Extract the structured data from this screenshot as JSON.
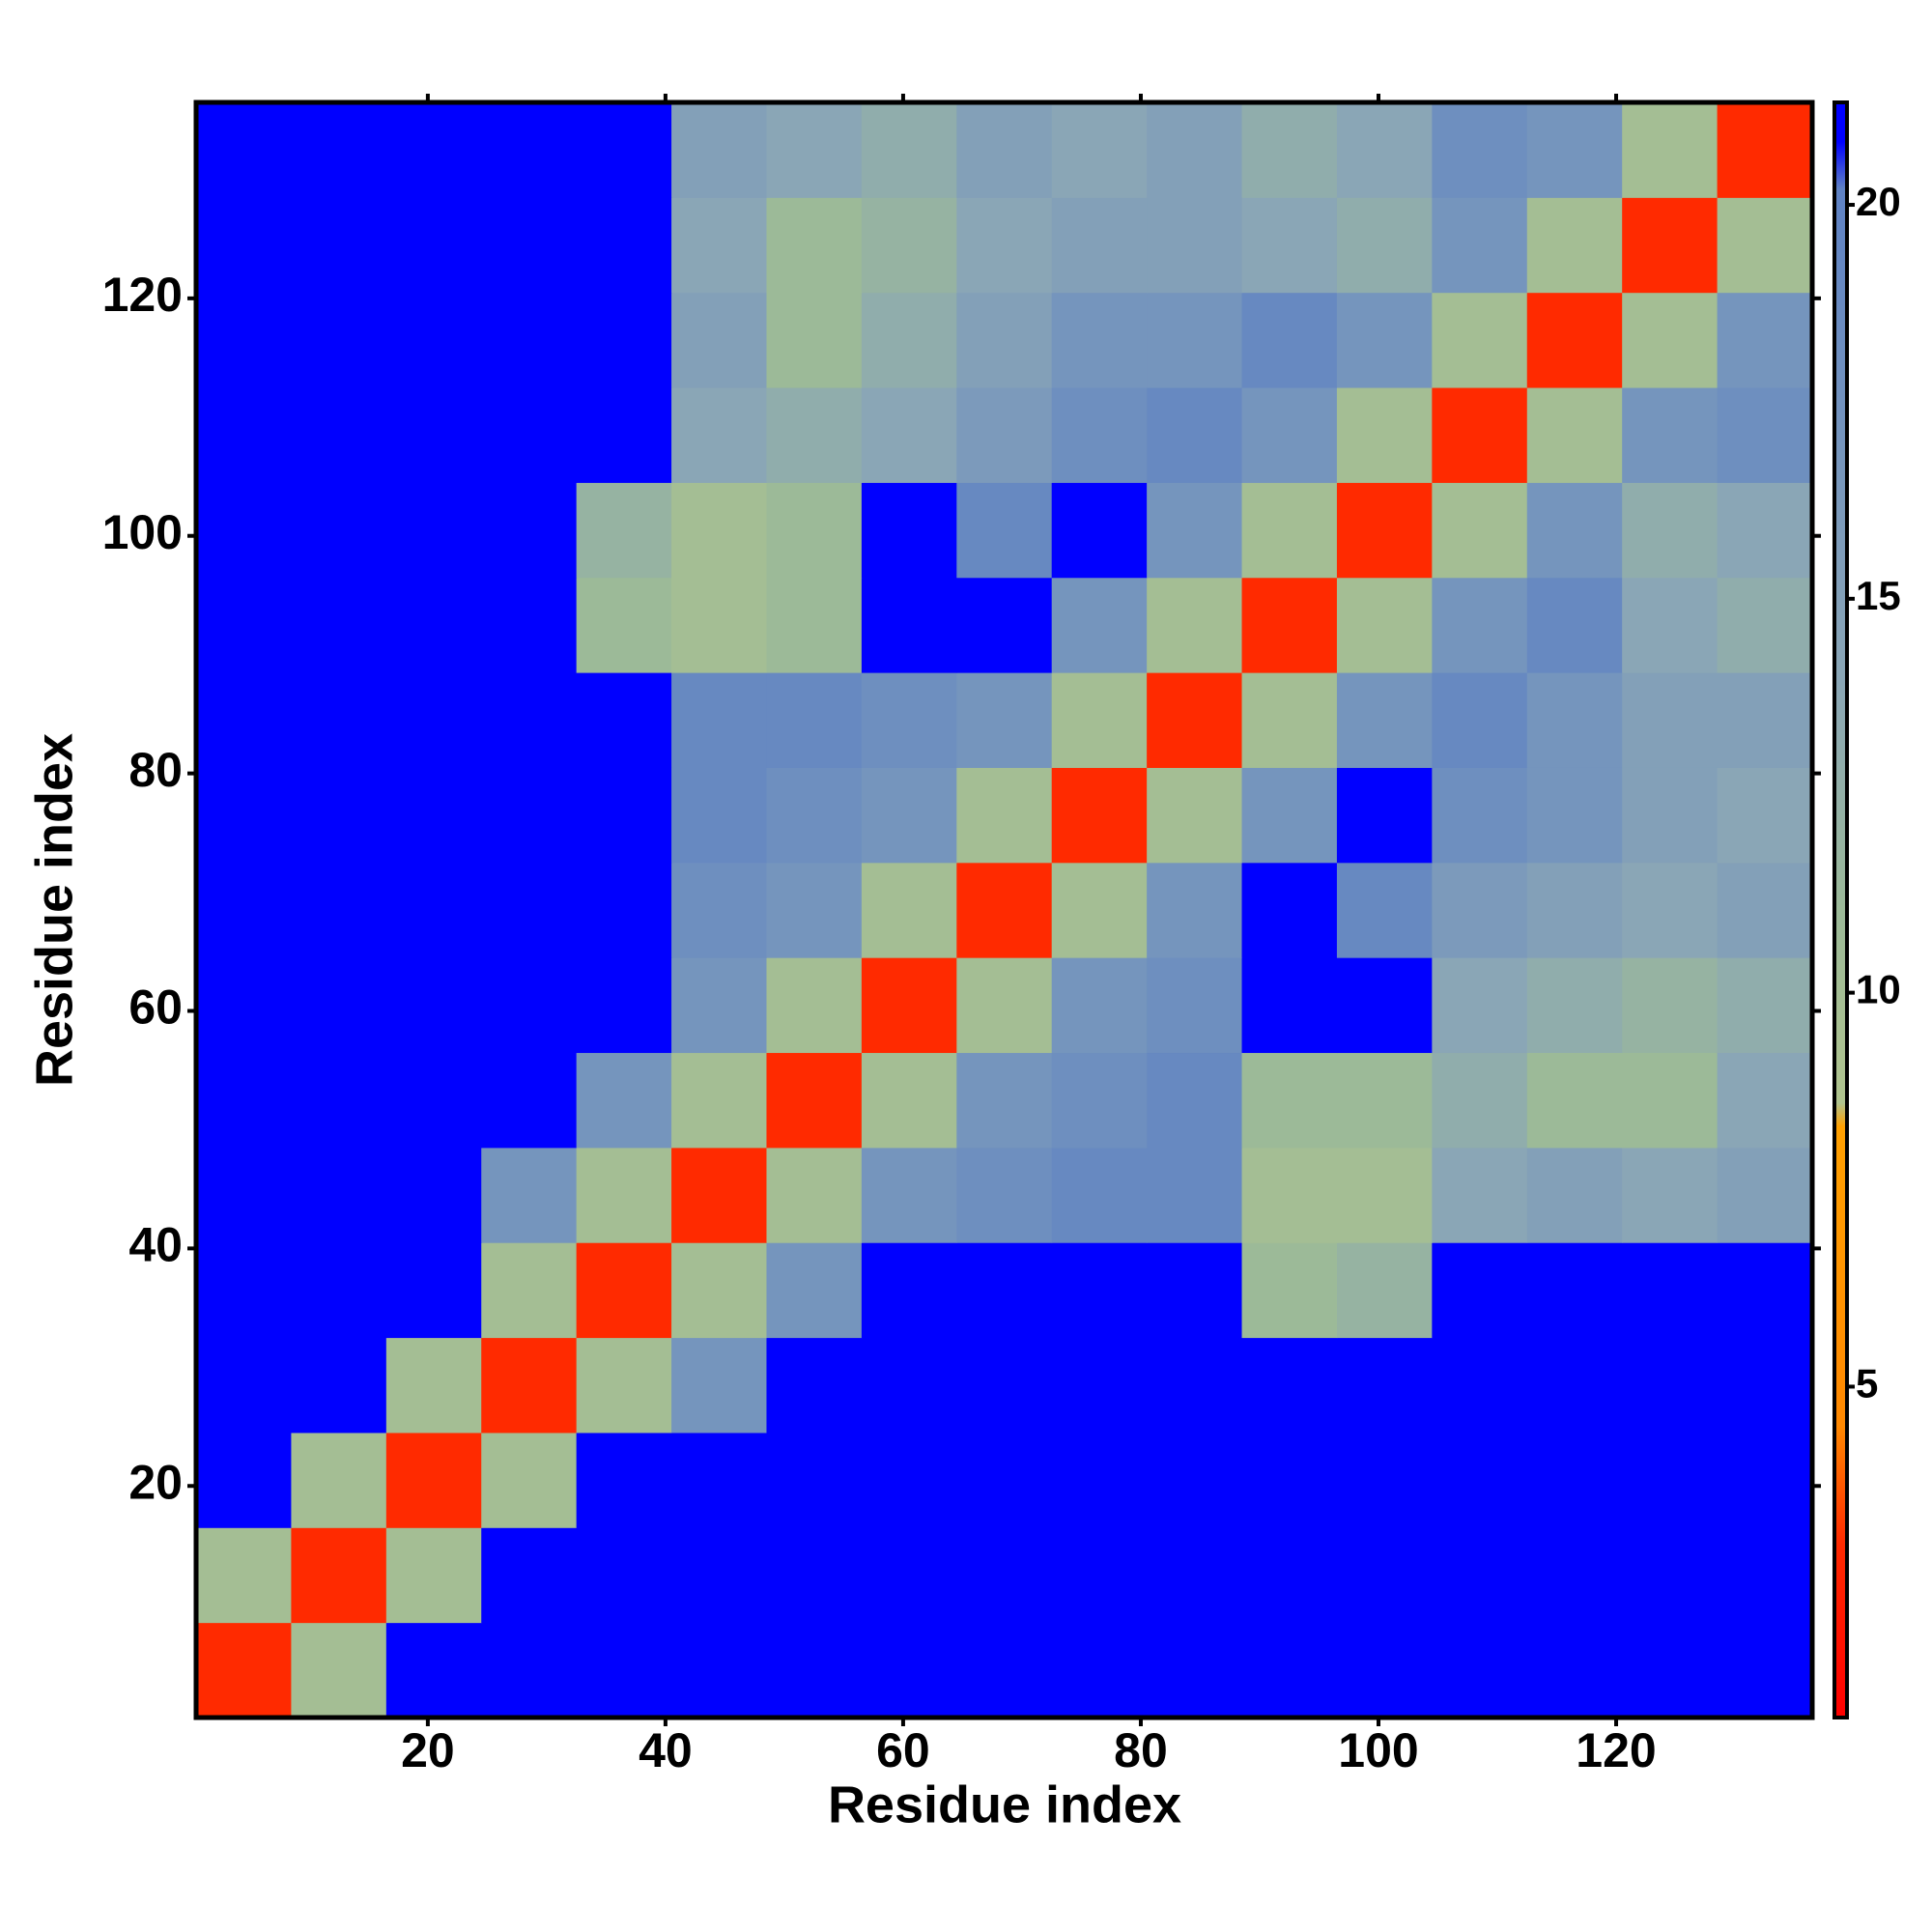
{
  "chart_data": {
    "type": "heatmap",
    "x_label": "Residue index",
    "y_label": "Residue index",
    "xbins": [
      0.5,
      8.5,
      16.5,
      24.5,
      32.5,
      40.5,
      48.5,
      56.5,
      64.5,
      72.5,
      80.5,
      88.5,
      96.5,
      104.5,
      112.5,
      120.5,
      128.5,
      136.5
    ],
    "ybins": [
      0.5,
      8.5,
      16.5,
      24.5,
      32.5,
      40.5,
      48.5,
      56.5,
      64.5,
      72.5,
      80.5,
      88.5,
      96.5,
      104.5,
      112.5,
      120.5,
      128.5,
      136.5
    ],
    "xlim": [
      0.5,
      136.5
    ],
    "ylim": [
      0.5,
      136.5
    ],
    "xticks": [
      20,
      40,
      60,
      80,
      100,
      120
    ],
    "yticks": [
      20,
      40,
      60,
      80,
      100,
      120
    ],
    "z": [
      [
        3,
        10,
        21,
        21,
        21,
        21,
        21,
        21,
        21,
        21,
        21,
        21,
        21,
        21,
        21,
        21,
        21
      ],
      [
        10,
        3,
        10,
        21,
        21,
        21,
        21,
        21,
        21,
        21,
        21,
        21,
        21,
        21,
        21,
        21,
        21
      ],
      [
        21,
        10,
        3,
        10,
        21,
        21,
        21,
        21,
        21,
        21,
        21,
        21,
        21,
        21,
        21,
        21,
        21
      ],
      [
        21,
        21,
        10,
        3,
        10,
        17,
        21,
        21,
        21,
        21,
        21,
        21,
        21,
        21,
        21,
        21,
        21
      ],
      [
        21,
        21,
        21,
        10,
        3,
        10,
        17,
        21,
        21,
        21,
        21,
        11,
        12,
        21,
        21,
        21,
        21
      ],
      [
        21,
        21,
        21,
        17,
        10,
        3,
        10,
        17,
        18,
        19,
        19,
        10,
        10,
        14,
        15,
        14,
        15
      ],
      [
        21,
        21,
        21,
        21,
        17,
        10,
        3,
        10,
        17,
        18,
        19,
        11,
        11,
        13,
        11,
        11,
        14
      ],
      [
        21,
        21,
        21,
        21,
        21,
        17,
        10,
        3,
        10,
        17,
        18,
        21,
        21,
        14,
        13,
        12,
        13
      ],
      [
        21,
        21,
        21,
        21,
        21,
        18,
        17,
        10,
        3,
        10,
        17,
        21,
        19,
        16,
        15,
        14,
        15
      ],
      [
        21,
        21,
        21,
        21,
        21,
        19,
        18,
        17,
        10,
        3,
        10,
        17,
        21,
        18,
        17,
        15,
        14
      ],
      [
        21,
        21,
        21,
        21,
        21,
        19,
        19,
        18,
        17,
        10,
        3,
        10,
        17,
        19,
        17,
        15,
        15
      ],
      [
        21,
        21,
        21,
        21,
        11,
        10,
        11,
        21,
        21,
        17,
        10,
        3,
        10,
        17,
        19,
        14,
        13
      ],
      [
        21,
        21,
        21,
        21,
        12,
        10,
        11,
        21,
        19,
        21,
        17,
        10,
        3,
        10,
        17,
        13,
        14
      ],
      [
        21,
        21,
        21,
        21,
        21,
        14,
        13,
        14,
        16,
        18,
        19,
        17,
        10,
        3,
        10,
        17,
        18
      ],
      [
        21,
        21,
        21,
        21,
        21,
        15,
        11,
        13,
        15,
        17,
        17,
        19,
        17,
        10,
        3,
        10,
        17
      ],
      [
        21,
        21,
        21,
        21,
        21,
        14,
        11,
        12,
        14,
        15,
        15,
        14,
        13,
        17,
        10,
        3,
        10
      ],
      [
        21,
        21,
        21,
        21,
        21,
        15,
        14,
        13,
        15,
        14,
        15,
        13,
        14,
        18,
        17,
        10,
        3
      ]
    ],
    "clim": [
      0.8,
      21.3
    ],
    "cticks": [
      5,
      10,
      15,
      20
    ],
    "colorscale": [
      [
        0.8,
        "#ff0000"
      ],
      [
        3,
        "#ff2a00"
      ],
      [
        4.5,
        "#ff8800"
      ],
      [
        8.3,
        "#ffa000"
      ],
      [
        8.6,
        "#b0c48e"
      ],
      [
        11,
        "#9cba98"
      ],
      [
        14,
        "#8aa6b6"
      ],
      [
        20.2,
        "#5f82c4"
      ],
      [
        20.8,
        "#0000ff"
      ],
      [
        21.3,
        "#0000ff"
      ]
    ]
  }
}
